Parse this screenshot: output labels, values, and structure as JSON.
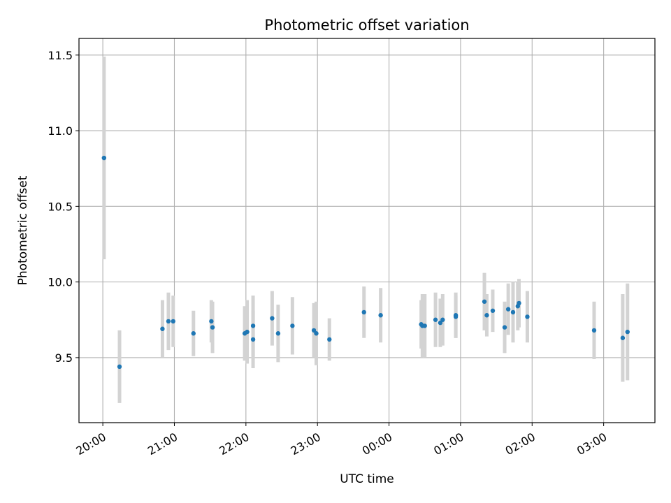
{
  "chart_data": {
    "type": "scatter",
    "title": "Photometric offset variation",
    "xlabel": "UTC time",
    "ylabel": "Photometric offset",
    "x_axis_type": "time",
    "x_ticks": [
      "20:00",
      "21:00",
      "22:00",
      "23:00",
      "00:00",
      "01:00",
      "02:00",
      "03:00"
    ],
    "y_ticks": [
      9.5,
      10.0,
      10.5,
      11.0,
      11.5
    ],
    "xlim": [
      "19:40",
      "03:43"
    ],
    "ylim": [
      9.07,
      11.61
    ],
    "grid": true,
    "colors": {
      "point": "#1f77b4",
      "errorbar": "#d3d3d3",
      "grid": "#b0b0b0"
    },
    "points": [
      {
        "t": "20:01",
        "y": 10.82,
        "err": 0.67
      },
      {
        "t": "20:14",
        "y": 9.44,
        "err": 0.24
      },
      {
        "t": "20:50",
        "y": 9.69,
        "err": 0.19
      },
      {
        "t": "20:55",
        "y": 9.74,
        "err": 0.19
      },
      {
        "t": "20:59",
        "y": 9.74,
        "err": 0.17
      },
      {
        "t": "21:16",
        "y": 9.66,
        "err": 0.15
      },
      {
        "t": "21:31",
        "y": 9.74,
        "err": 0.14
      },
      {
        "t": "21:32",
        "y": 9.7,
        "err": 0.17
      },
      {
        "t": "21:59",
        "y": 9.66,
        "err": 0.18
      },
      {
        "t": "22:01",
        "y": 9.67,
        "err": 0.21
      },
      {
        "t": "22:06",
        "y": 9.71,
        "err": 0.2
      },
      {
        "t": "22:06",
        "y": 9.62,
        "err": 0.19
      },
      {
        "t": "22:22",
        "y": 9.76,
        "err": 0.18
      },
      {
        "t": "22:27",
        "y": 9.66,
        "err": 0.19
      },
      {
        "t": "22:39",
        "y": 9.71,
        "err": 0.19
      },
      {
        "t": "22:57",
        "y": 9.68,
        "err": 0.18
      },
      {
        "t": "22:59",
        "y": 9.66,
        "err": 0.21
      },
      {
        "t": "23:10",
        "y": 9.62,
        "err": 0.14
      },
      {
        "t": "23:39",
        "y": 9.8,
        "err": 0.17
      },
      {
        "t": "23:53",
        "y": 9.78,
        "err": 0.18
      },
      {
        "t": "00:27",
        "y": 9.72,
        "err": 0.16
      },
      {
        "t": "00:28",
        "y": 9.71,
        "err": 0.21
      },
      {
        "t": "00:30",
        "y": 9.71,
        "err": 0.21
      },
      {
        "t": "00:39",
        "y": 9.75,
        "err": 0.18
      },
      {
        "t": "00:43",
        "y": 9.73,
        "err": 0.16
      },
      {
        "t": "00:45",
        "y": 9.75,
        "err": 0.17
      },
      {
        "t": "00:56",
        "y": 9.78,
        "err": 0.15
      },
      {
        "t": "00:56",
        "y": 9.77,
        "err": 0.14
      },
      {
        "t": "01:20",
        "y": 9.87,
        "err": 0.19
      },
      {
        "t": "01:22",
        "y": 9.78,
        "err": 0.14
      },
      {
        "t": "01:27",
        "y": 9.81,
        "err": 0.14
      },
      {
        "t": "01:37",
        "y": 9.7,
        "err": 0.17
      },
      {
        "t": "01:40",
        "y": 9.82,
        "err": 0.17
      },
      {
        "t": "01:44",
        "y": 9.8,
        "err": 0.2
      },
      {
        "t": "01:48",
        "y": 9.84,
        "err": 0.16
      },
      {
        "t": "01:49",
        "y": 9.86,
        "err": 0.16
      },
      {
        "t": "01:56",
        "y": 9.77,
        "err": 0.17
      },
      {
        "t": "02:52",
        "y": 9.68,
        "err": 0.19
      },
      {
        "t": "03:16",
        "y": 9.63,
        "err": 0.29
      },
      {
        "t": "03:20",
        "y": 9.67,
        "err": 0.32
      }
    ]
  }
}
